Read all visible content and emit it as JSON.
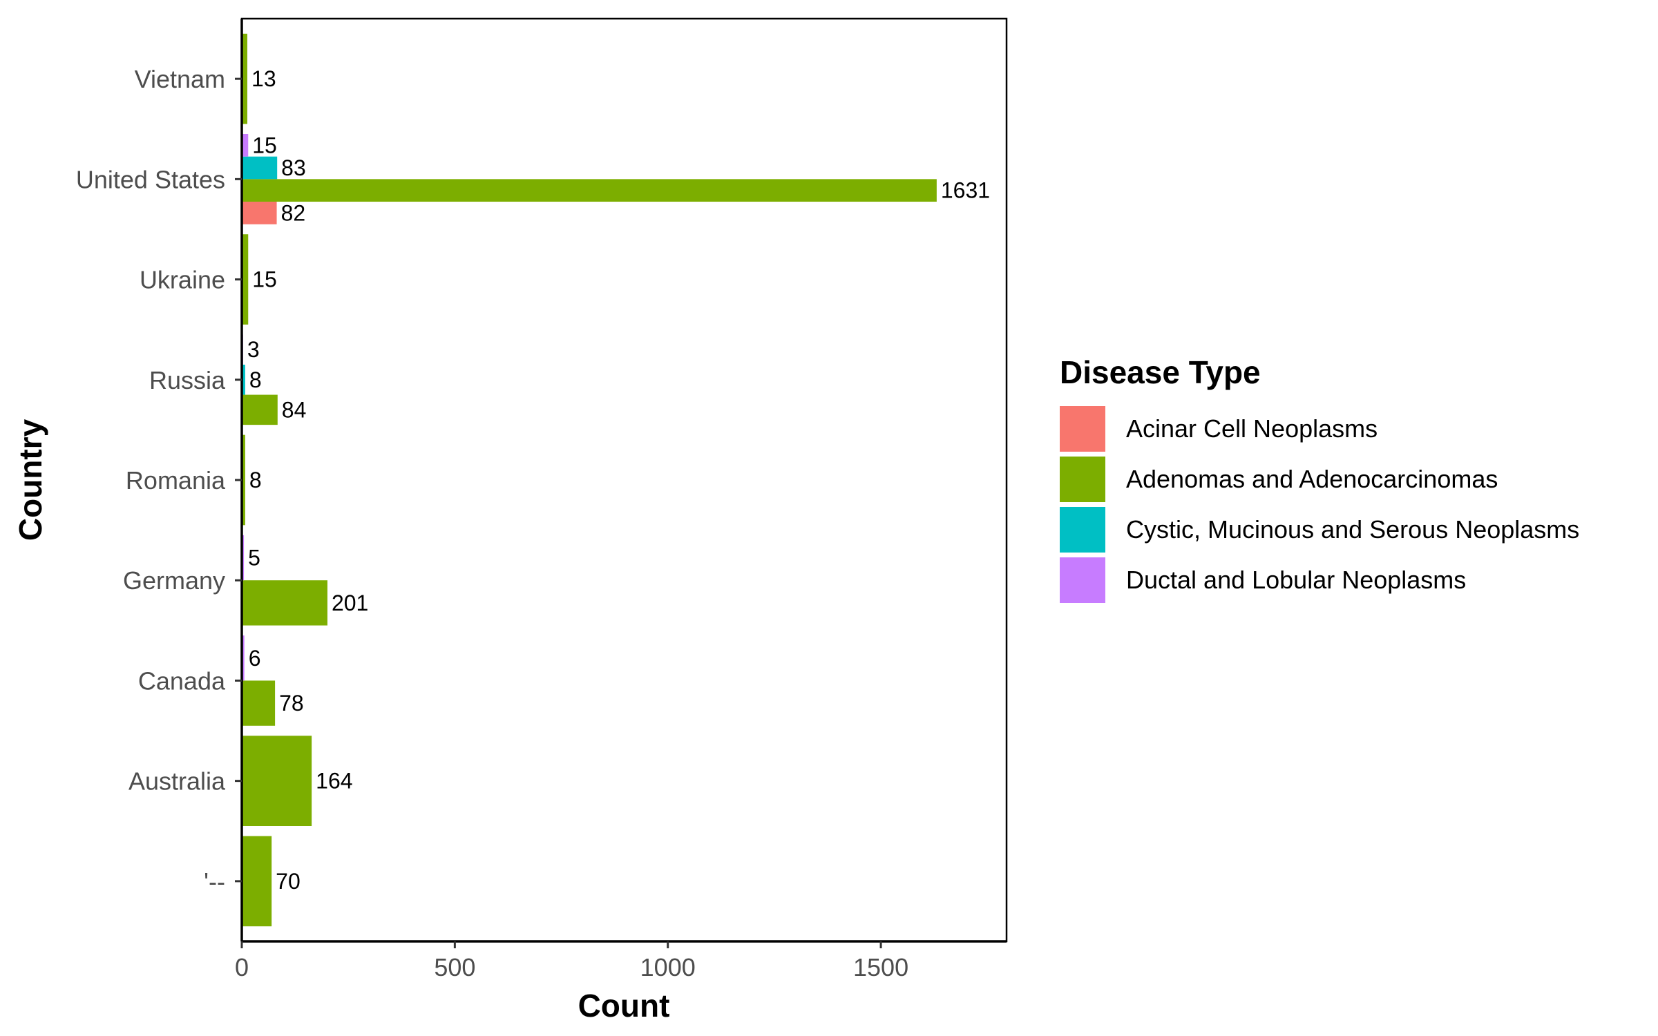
{
  "chart_data": {
    "type": "bar",
    "orientation": "horizontal",
    "categories": [
      "'--",
      "Australia",
      "Canada",
      "Germany",
      "Romania",
      "Russia",
      "Ukraine",
      "United States",
      "Vietnam"
    ],
    "series": [
      {
        "name": "Acinar Cell Neoplasms",
        "color": "#F8766D",
        "values": [
          null,
          null,
          null,
          null,
          null,
          null,
          null,
          82,
          null
        ]
      },
      {
        "name": "Adenomas and Adenocarcinomas",
        "color": "#7CAE00",
        "values": [
          70,
          164,
          78,
          201,
          8,
          84,
          15,
          1631,
          13
        ]
      },
      {
        "name": "Cystic, Mucinous and Serous Neoplasms",
        "color": "#00BFC4",
        "values": [
          null,
          null,
          null,
          null,
          null,
          8,
          null,
          83,
          null
        ]
      },
      {
        "name": "Ductal and Lobular Neoplasms",
        "color": "#C77CFF",
        "values": [
          null,
          null,
          6,
          5,
          null,
          3,
          null,
          15,
          null
        ]
      }
    ],
    "xlabel": "Count",
    "ylabel": "Country",
    "xlim": [
      0,
      1795
    ],
    "xticks": [
      0,
      500,
      1000,
      1500
    ],
    "legend": {
      "title": "Disease Type",
      "placement": "right"
    },
    "grid": false
  }
}
